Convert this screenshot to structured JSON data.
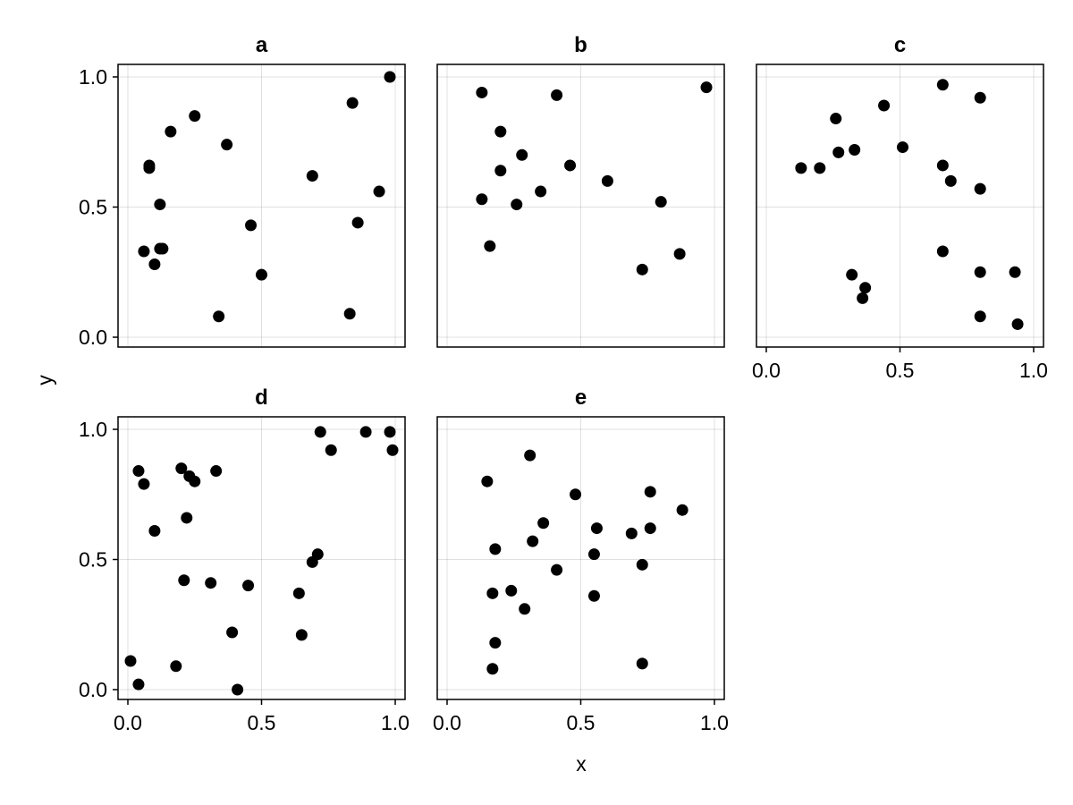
{
  "chart_data": {
    "type": "scatter",
    "xlabel": "x",
    "ylabel": "y",
    "xlim": [
      0.0,
      1.0
    ],
    "ylim": [
      0.0,
      1.0
    ],
    "tick_labels": [
      "0.0",
      "0.5",
      "1.0"
    ],
    "tick_values": [
      0.0,
      0.5,
      1.0
    ],
    "grid": true,
    "marker_color": "#000000",
    "panels": [
      {
        "title": "a",
        "points": [
          {
            "x": 0.06,
            "y": 0.33
          },
          {
            "x": 0.08,
            "y": 0.66
          },
          {
            "x": 0.08,
            "y": 0.65
          },
          {
            "x": 0.1,
            "y": 0.28
          },
          {
            "x": 0.12,
            "y": 0.51
          },
          {
            "x": 0.12,
            "y": 0.34
          },
          {
            "x": 0.13,
            "y": 0.34
          },
          {
            "x": 0.16,
            "y": 0.79
          },
          {
            "x": 0.25,
            "y": 0.85
          },
          {
            "x": 0.34,
            "y": 0.08
          },
          {
            "x": 0.37,
            "y": 0.74
          },
          {
            "x": 0.46,
            "y": 0.43
          },
          {
            "x": 0.5,
            "y": 0.24
          },
          {
            "x": 0.69,
            "y": 0.62
          },
          {
            "x": 0.83,
            "y": 0.09
          },
          {
            "x": 0.84,
            "y": 0.9
          },
          {
            "x": 0.86,
            "y": 0.44
          },
          {
            "x": 0.94,
            "y": 0.56
          },
          {
            "x": 0.98,
            "y": 1.0
          }
        ]
      },
      {
        "title": "b",
        "points": [
          {
            "x": 0.13,
            "y": 0.94
          },
          {
            "x": 0.13,
            "y": 0.53
          },
          {
            "x": 0.16,
            "y": 0.35
          },
          {
            "x": 0.2,
            "y": 0.79
          },
          {
            "x": 0.2,
            "y": 0.64
          },
          {
            "x": 0.26,
            "y": 0.51
          },
          {
            "x": 0.28,
            "y": 0.7
          },
          {
            "x": 0.35,
            "y": 0.56
          },
          {
            "x": 0.41,
            "y": 0.93
          },
          {
            "x": 0.46,
            "y": 0.66
          },
          {
            "x": 0.6,
            "y": 0.6
          },
          {
            "x": 0.73,
            "y": 0.26
          },
          {
            "x": 0.8,
            "y": 0.52
          },
          {
            "x": 0.87,
            "y": 0.32
          },
          {
            "x": 0.97,
            "y": 0.96
          }
        ]
      },
      {
        "title": "c",
        "points": [
          {
            "x": 0.13,
            "y": 0.65
          },
          {
            "x": 0.2,
            "y": 0.65
          },
          {
            "x": 0.26,
            "y": 0.84
          },
          {
            "x": 0.27,
            "y": 0.71
          },
          {
            "x": 0.32,
            "y": 0.24
          },
          {
            "x": 0.33,
            "y": 0.72
          },
          {
            "x": 0.36,
            "y": 0.15
          },
          {
            "x": 0.37,
            "y": 0.19
          },
          {
            "x": 0.44,
            "y": 0.89
          },
          {
            "x": 0.51,
            "y": 0.73
          },
          {
            "x": 0.66,
            "y": 0.97
          },
          {
            "x": 0.66,
            "y": 0.66
          },
          {
            "x": 0.66,
            "y": 0.33
          },
          {
            "x": 0.69,
            "y": 0.6
          },
          {
            "x": 0.8,
            "y": 0.92
          },
          {
            "x": 0.8,
            "y": 0.57
          },
          {
            "x": 0.8,
            "y": 0.25
          },
          {
            "x": 0.8,
            "y": 0.08
          },
          {
            "x": 0.93,
            "y": 0.25
          },
          {
            "x": 0.94,
            "y": 0.05
          }
        ]
      },
      {
        "title": "d",
        "points": [
          {
            "x": 0.01,
            "y": 0.11
          },
          {
            "x": 0.04,
            "y": 0.84
          },
          {
            "x": 0.04,
            "y": 0.02
          },
          {
            "x": 0.06,
            "y": 0.79
          },
          {
            "x": 0.1,
            "y": 0.61
          },
          {
            "x": 0.18,
            "y": 0.09
          },
          {
            "x": 0.2,
            "y": 0.85
          },
          {
            "x": 0.21,
            "y": 0.42
          },
          {
            "x": 0.22,
            "y": 0.66
          },
          {
            "x": 0.23,
            "y": 0.82
          },
          {
            "x": 0.25,
            "y": 0.8
          },
          {
            "x": 0.31,
            "y": 0.41
          },
          {
            "x": 0.33,
            "y": 0.84
          },
          {
            "x": 0.39,
            "y": 0.22
          },
          {
            "x": 0.41,
            "y": 0.0
          },
          {
            "x": 0.45,
            "y": 0.4
          },
          {
            "x": 0.64,
            "y": 0.37
          },
          {
            "x": 0.65,
            "y": 0.21
          },
          {
            "x": 0.69,
            "y": 0.49
          },
          {
            "x": 0.71,
            "y": 0.52
          },
          {
            "x": 0.72,
            "y": 0.99
          },
          {
            "x": 0.76,
            "y": 0.92
          },
          {
            "x": 0.89,
            "y": 0.99
          },
          {
            "x": 0.98,
            "y": 0.99
          },
          {
            "x": 0.99,
            "y": 0.92
          }
        ]
      },
      {
        "title": "e",
        "points": [
          {
            "x": 0.15,
            "y": 0.8
          },
          {
            "x": 0.17,
            "y": 0.37
          },
          {
            "x": 0.18,
            "y": 0.54
          },
          {
            "x": 0.18,
            "y": 0.18
          },
          {
            "x": 0.17,
            "y": 0.08
          },
          {
            "x": 0.24,
            "y": 0.38
          },
          {
            "x": 0.29,
            "y": 0.31
          },
          {
            "x": 0.31,
            "y": 0.9
          },
          {
            "x": 0.32,
            "y": 0.57
          },
          {
            "x": 0.36,
            "y": 0.64
          },
          {
            "x": 0.41,
            "y": 0.46
          },
          {
            "x": 0.48,
            "y": 0.75
          },
          {
            "x": 0.55,
            "y": 0.52
          },
          {
            "x": 0.55,
            "y": 0.36
          },
          {
            "x": 0.56,
            "y": 0.62
          },
          {
            "x": 0.69,
            "y": 0.6
          },
          {
            "x": 0.73,
            "y": 0.48
          },
          {
            "x": 0.73,
            "y": 0.1
          },
          {
            "x": 0.76,
            "y": 0.76
          },
          {
            "x": 0.76,
            "y": 0.62
          },
          {
            "x": 0.88,
            "y": 0.69
          }
        ]
      }
    ]
  }
}
